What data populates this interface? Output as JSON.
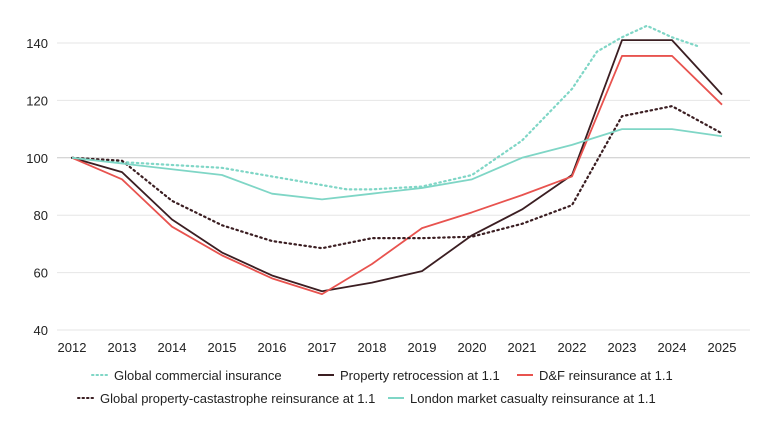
{
  "chart_data": {
    "type": "line",
    "title": "",
    "xlabel": "",
    "ylabel": "",
    "xlim": [
      2012,
      2025
    ],
    "ylim": [
      40,
      150
    ],
    "x_ticks": [
      "2012",
      "2013",
      "2014",
      "2015",
      "2016",
      "2017",
      "2018",
      "2019",
      "2020",
      "2021",
      "2022",
      "2023",
      "2024",
      "2025"
    ],
    "y_ticks": [
      40,
      60,
      80,
      100,
      120,
      140
    ],
    "grid": "horizontal",
    "legend": "bottom",
    "series": [
      {
        "name": "Global commercial insurance",
        "color": "#7fd6c6",
        "style": "dotted",
        "x": [
          2012,
          2013,
          2014,
          2015,
          2016,
          2017,
          2017.5,
          2018,
          2019,
          2020,
          2021,
          2022,
          2022.5,
          2023,
          2023.5,
          2024,
          2024.5
        ],
        "y": [
          100,
          98.5,
          97.5,
          96.5,
          93.5,
          90.5,
          89,
          89,
          90,
          94,
          106,
          124,
          137,
          142,
          146,
          142,
          139
        ]
      },
      {
        "name": "Property retrocession at 1.1",
        "color": "#3b1e22",
        "style": "solid",
        "x": [
          2012,
          2013,
          2014,
          2015,
          2016,
          2017,
          2018,
          2019,
          2020,
          2021,
          2022,
          2023,
          2024,
          2025
        ],
        "y": [
          100,
          95,
          78.5,
          67,
          59,
          53.5,
          56.5,
          60.5,
          73,
          82,
          94,
          141,
          141,
          122
        ]
      },
      {
        "name": "D&F reinsurance at 1.1",
        "color": "#e8534f",
        "style": "solid",
        "x": [
          2012,
          2013,
          2014,
          2015,
          2016,
          2017,
          2018,
          2019,
          2020,
          2021,
          2022,
          2023,
          2024,
          2025
        ],
        "y": [
          100,
          92.5,
          76,
          66,
          58,
          52.5,
          63,
          75.5,
          81,
          87,
          93.5,
          135.5,
          135.5,
          118.5
        ]
      },
      {
        "name": "Global property-castastrophe reinsurance at 1.1",
        "color": "#3b1e22",
        "style": "dotted",
        "x": [
          2012,
          2013,
          2014,
          2015,
          2016,
          2017,
          2018,
          2019,
          2020,
          2021,
          2022,
          2023,
          2024,
          2025
        ],
        "y": [
          100,
          99,
          85,
          76.5,
          71,
          68.5,
          72,
          72,
          72.5,
          77,
          83.5,
          114.5,
          118,
          108.5
        ]
      },
      {
        "name": "London market casualty reinsurance at 1.1",
        "color": "#7fd6c6",
        "style": "solid",
        "x": [
          2012,
          2013,
          2014,
          2015,
          2016,
          2017,
          2018,
          2019,
          2020,
          2021,
          2022,
          2023,
          2024,
          2025
        ],
        "y": [
          100,
          98,
          96,
          94,
          87.5,
          85.5,
          87.5,
          89.5,
          92.5,
          100,
          104.5,
          110,
          110,
          107.5
        ]
      }
    ]
  }
}
